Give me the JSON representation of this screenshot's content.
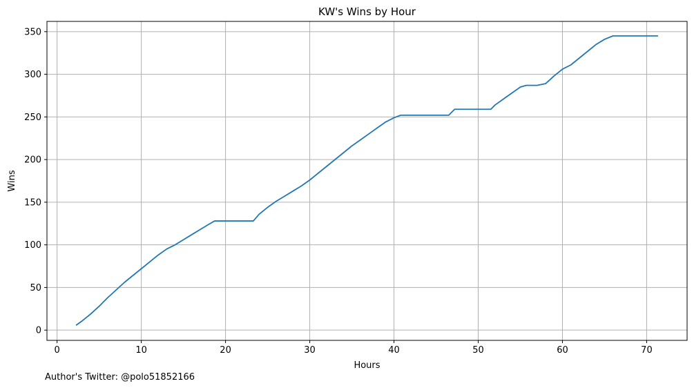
{
  "chart_data": {
    "type": "line",
    "title": "KW's Wins by Hour",
    "xlabel": "Hours",
    "ylabel": "Wins",
    "xlim": [
      -1.2,
      74.8
    ],
    "ylim": [
      -12,
      362
    ],
    "xticks": [
      0,
      10,
      20,
      30,
      40,
      50,
      60,
      70
    ],
    "yticks": [
      0,
      50,
      100,
      150,
      200,
      250,
      300,
      350
    ],
    "grid": true,
    "legend": "none",
    "series": [
      {
        "color": "#1f77b4",
        "x": [
          2.3,
          3,
          4,
          5,
          6,
          7,
          8,
          9,
          10,
          11,
          12,
          13,
          14,
          15,
          16,
          17,
          18,
          18.7,
          20,
          22,
          23.3,
          24,
          25,
          26,
          27,
          28,
          29,
          30,
          31,
          32,
          33,
          34,
          35,
          36,
          37,
          38,
          39,
          40,
          40.8,
          42,
          44,
          46,
          46.5,
          47.2,
          48,
          50,
          51.5,
          52,
          53,
          54,
          55,
          55.7,
          57,
          58,
          59,
          60,
          61,
          62,
          63,
          64,
          65,
          66,
          68,
          70,
          71.3
        ],
        "y": [
          6,
          11,
          19,
          28,
          38,
          47,
          56,
          64,
          72,
          80,
          88,
          95,
          100,
          106,
          112,
          118,
          124,
          128,
          128,
          128,
          128,
          136,
          144,
          151,
          157,
          163,
          169,
          176,
          184,
          192,
          200,
          208,
          216,
          223,
          230,
          237,
          244,
          249,
          252,
          252,
          252,
          252,
          252,
          259,
          259,
          259,
          259,
          264,
          271,
          278,
          285,
          287,
          287,
          289,
          298,
          306,
          311,
          319,
          327,
          335,
          341,
          345,
          345,
          345,
          345
        ]
      }
    ]
  },
  "footer": {
    "note": "Author's Twitter: @polo51852166"
  }
}
